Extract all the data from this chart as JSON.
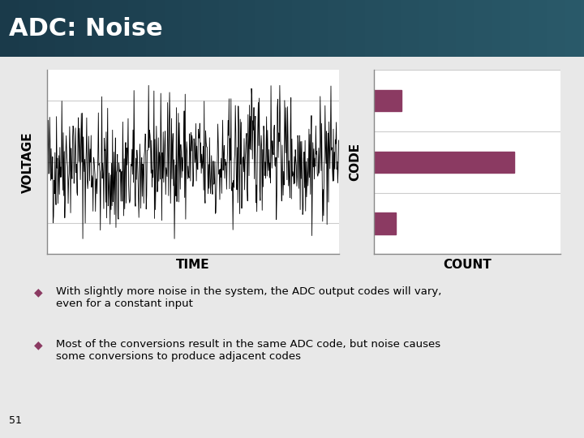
{
  "title": "ADC: Noise",
  "title_bg_color1": "#1a3a4a",
  "title_bg_color2": "#2a5a6a",
  "title_text_color": "#ffffff",
  "title_fontsize": 22,
  "left_xlabel": "TIME",
  "left_ylabel": "VOLTAGE",
  "right_xlabel": "COUNT",
  "right_ylabel": "CODE",
  "bar_color": "#8B3A62",
  "bar_values": [
    0.15,
    0.75,
    0.12
  ],
  "bar_positions": [
    2,
    1,
    0
  ],
  "bar_labels": [
    "",
    "",
    ""
  ],
  "noise_seed": 42,
  "noise_n": 600,
  "noise_amplitude": 1.0,
  "noise_mean": 0.0,
  "axis_line_color": "#888888",
  "grid_color": "#cccccc",
  "bg_color": "#f0f0f0",
  "slide_bg_color": "#e8e8e8",
  "bullet_color": "#8B3A62",
  "bullet1": "With slightly more noise in the system, the ADC output codes will vary,\neven for a constant input",
  "bullet2": "Most of the conversions result in the same ADC code, but noise causes\nsome conversions to produce adjacent codes",
  "page_number": "51",
  "label_fontsize": 11,
  "tick_fontsize": 8
}
